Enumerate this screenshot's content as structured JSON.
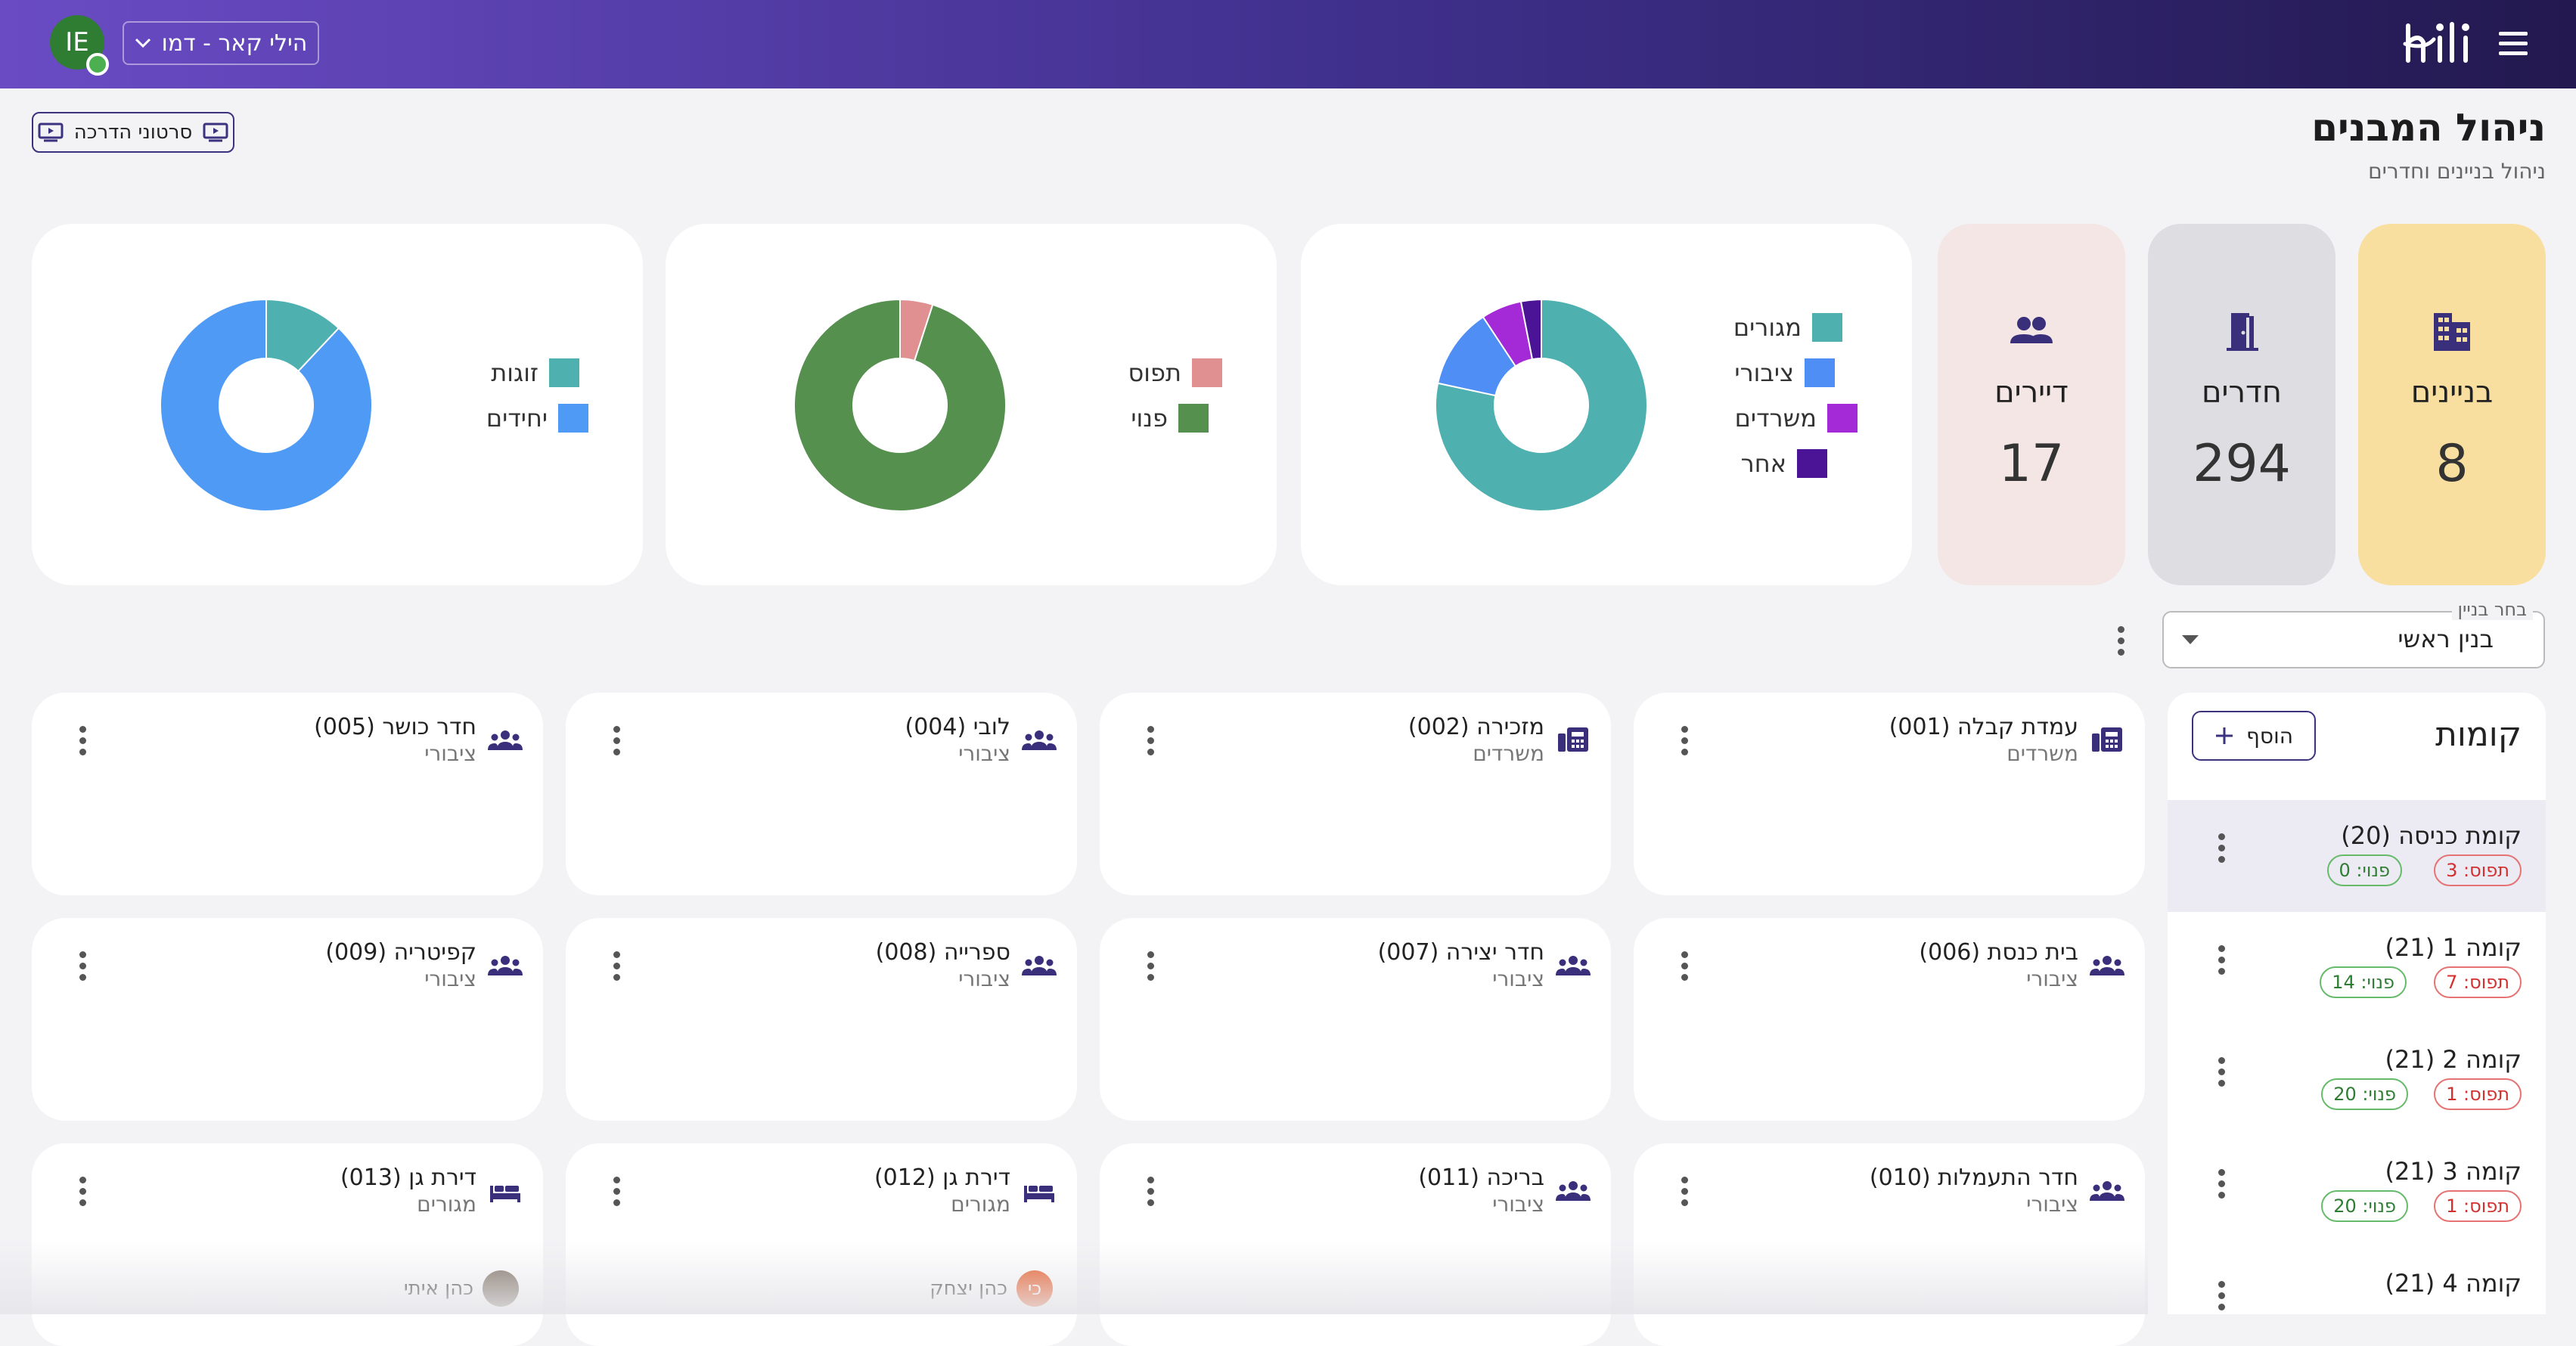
{
  "topbar": {
    "avatar_initials": "IE",
    "account_label": "הילי קאר - דמו",
    "brand": "hili",
    "colors": {
      "gradient_start": "#6a4bc4",
      "gradient_end": "#23194f"
    }
  },
  "header": {
    "title": "ניהול המבנים",
    "subtitle": "ניהול בניינים וחדרים",
    "tutorials_label": "סרטוני הדרכה"
  },
  "stats": [
    {
      "label": "בניינים",
      "value": "8",
      "icon": "building-icon",
      "color": "#f8dfa0"
    },
    {
      "label": "חדרים",
      "value": "294",
      "icon": "door-icon",
      "color": "#dddde2"
    },
    {
      "label": "דיירים",
      "value": "17",
      "icon": "people-icon",
      "color": "#f3e6e4"
    }
  ],
  "chart_data": [
    {
      "type": "pie",
      "categories": [
        "מגורים",
        "ציבורי",
        "משרדים",
        "אחר"
      ],
      "values": [
        76,
        12,
        6,
        3
      ],
      "colors": [
        "#4fb0b0",
        "#4f8ff5",
        "#a32ad6",
        "#4b1496"
      ]
    },
    {
      "type": "pie",
      "categories": [
        "תפוס",
        "פנוי"
      ],
      "values": [
        5,
        95
      ],
      "colors": [
        "#e09090",
        "#55904f"
      ]
    },
    {
      "type": "pie",
      "categories": [
        "זוגות",
        "יחידים"
      ],
      "values": [
        12,
        88
      ],
      "colors": [
        "#4fb0b0",
        "#4f9af5"
      ]
    }
  ],
  "building_select": {
    "label": "בחר בניין",
    "value": "בנין ראשי"
  },
  "floors": {
    "title": "קומות",
    "add_label": "הוסף",
    "items": [
      {
        "name": "קומת כניסה (20)",
        "occupied": "תפוס: 3",
        "free": "פנוי: 0"
      },
      {
        "name": "קומה 1 (21)",
        "occupied": "תפוס: 7",
        "free": "פנוי: 14"
      },
      {
        "name": "קומה 2 (21)",
        "occupied": "תפוס: 1",
        "free": "פנוי: 20"
      },
      {
        "name": "קומה 3 (21)",
        "occupied": "תפוס: 1",
        "free": "פנוי: 20"
      },
      {
        "name": "קומה 4 (21)",
        "occupied": "",
        "free": ""
      }
    ]
  },
  "rooms": [
    {
      "name": "עמדת קבלה (001)",
      "type": "משרדים",
      "icon": "office-icon"
    },
    {
      "name": "מזכירה (002)",
      "type": "משרדים",
      "icon": "office-icon"
    },
    {
      "name": "לובי (004)",
      "type": "ציבורי",
      "icon": "group-icon"
    },
    {
      "name": "חדר כושר (005)",
      "type": "ציבורי",
      "icon": "group-icon"
    },
    {
      "name": "בית כנסת (006)",
      "type": "ציבורי",
      "icon": "group-icon"
    },
    {
      "name": "חדר יצירה (007)",
      "type": "ציבורי",
      "icon": "group-icon"
    },
    {
      "name": "ספרייה (008)",
      "type": "ציבורי",
      "icon": "group-icon"
    },
    {
      "name": "קפיטריה (009)",
      "type": "ציבורי",
      "icon": "group-icon"
    },
    {
      "name": "חדר התעמלות (010)",
      "type": "ציבורי",
      "icon": "group-icon"
    },
    {
      "name": "בריכה (011)",
      "type": "ציבורי",
      "icon": "group-icon"
    },
    {
      "name": "דירת גן (012)",
      "type": "מגורים",
      "icon": "bed-icon",
      "occupant": "כהן יצחק",
      "occupant_initials": "כי",
      "occupant_color": "#e8541e"
    },
    {
      "name": "דירת גן (013)",
      "type": "מגורים",
      "icon": "bed-icon",
      "occupant": "כהן איתי",
      "occupant_initials": "",
      "occupant_color": "#7a6a5c"
    }
  ]
}
